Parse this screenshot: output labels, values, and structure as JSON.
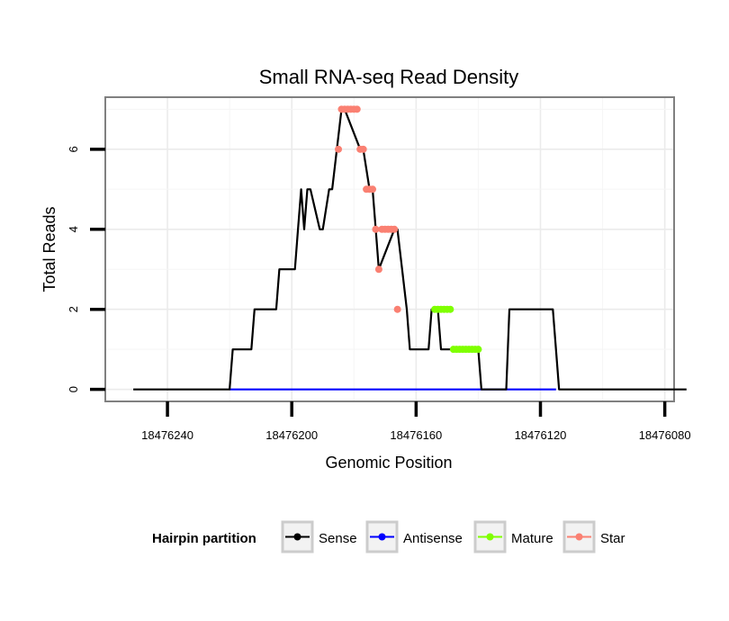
{
  "chart_data": {
    "type": "line",
    "title": "Small RNA-seq Read Density",
    "xlabel": "Genomic Position",
    "ylabel": "Total Reads",
    "x_reversed": true,
    "xlim": [
      18476260,
      18476077
    ],
    "ylim": [
      -0.3,
      7.3
    ],
    "x_ticks": [
      18476240,
      18476200,
      18476160,
      18476120,
      18476080
    ],
    "x_tick_labels": [
      "18476240",
      "18476200",
      "18476160",
      "18476120",
      "18476080"
    ],
    "y_ticks": [
      0,
      2,
      4,
      6
    ],
    "y_tick_labels": [
      "0",
      "2",
      "4",
      "6"
    ],
    "grid": true,
    "legend": {
      "title": "Hairpin partition",
      "position": "bottom",
      "entries": [
        {
          "name": "Sense",
          "color": "#000000"
        },
        {
          "name": "Antisense",
          "color": "#0000ff"
        },
        {
          "name": "Mature",
          "color": "#7fff00"
        },
        {
          "name": "Star",
          "color": "#fa8072"
        }
      ]
    },
    "series": [
      {
        "name": "Sense",
        "color": "#000000",
        "style": "line",
        "x": [
          18476251,
          18476220,
          18476219,
          18476213,
          18476212,
          18476205,
          18476204,
          18476199,
          18476198,
          18476197,
          18476196,
          18476195,
          18476194,
          18476191,
          18476190,
          18476188,
          18476187,
          18476184,
          18476183,
          18476178,
          18476177,
          18476175,
          18476174,
          18476173,
          18476172,
          18476167,
          18476166,
          18476163,
          18476162,
          18476160,
          18476159,
          18476156,
          18476155,
          18476153,
          18476152,
          18476150,
          18476149,
          18476146,
          18476145,
          18476140,
          18476139,
          18476131,
          18476130,
          18476126,
          18476125,
          18476117,
          18476116,
          18476114,
          18476073
        ],
        "y": [
          0,
          0,
          1,
          1,
          2,
          2,
          3,
          3,
          4,
          5,
          4,
          5,
          5,
          4,
          4,
          5,
          5,
          7,
          7,
          6,
          6,
          5,
          5,
          4,
          3,
          4,
          4,
          2,
          1,
          1,
          1,
          1,
          2,
          2,
          1,
          1,
          1,
          1,
          1,
          1,
          0,
          0,
          2,
          2,
          2,
          2,
          2,
          0,
          0
        ]
      },
      {
        "name": "Antisense",
        "color": "#0000ff",
        "style": "line",
        "x": [
          18476220,
          18476115
        ],
        "y": [
          0,
          0
        ]
      },
      {
        "name": "Mature",
        "color": "#7fff00",
        "style": "points",
        "x": [
          18476154,
          18476153,
          18476152,
          18476151,
          18476150,
          18476149,
          18476148,
          18476147,
          18476146,
          18476145,
          18476144,
          18476143,
          18476142,
          18476141,
          18476140
        ],
        "y": [
          2,
          2,
          2,
          2,
          2,
          2,
          1,
          1,
          1,
          1,
          1,
          1,
          1,
          1,
          1
        ]
      },
      {
        "name": "Star",
        "color": "#fa8072",
        "style": "points",
        "x": [
          18476185,
          18476184,
          18476183,
          18476182,
          18476181,
          18476180,
          18476179,
          18476178,
          18476177,
          18476176,
          18476175,
          18476174,
          18476173,
          18476172,
          18476171,
          18476170,
          18476169,
          18476168,
          18476167,
          18476166
        ],
        "y": [
          6,
          7,
          7,
          7,
          7,
          7,
          7,
          6,
          6,
          5,
          5,
          5,
          4,
          3,
          4,
          4,
          4,
          4,
          4,
          2
        ]
      }
    ]
  }
}
